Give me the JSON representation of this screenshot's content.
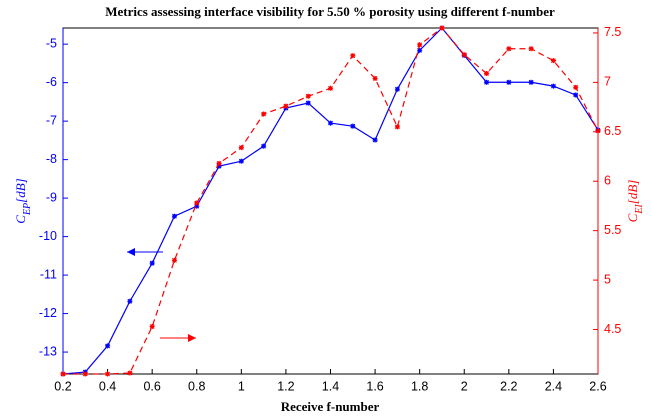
{
  "chart_data": {
    "type": "line",
    "title": "Metrics assessing interface visibility for 5.50 % porosity using different f-number",
    "xlabel": "Receive f-number",
    "ylabel": {
      "base": "C",
      "sub": "EP",
      "unit": "[dB]"
    },
    "y2label": {
      "base": "C",
      "sub": "EI",
      "unit": "[dB]"
    },
    "x": [
      0.2,
      0.3,
      0.4,
      0.5,
      0.6,
      0.7,
      0.8,
      0.9,
      1.0,
      1.1,
      1.2,
      1.3,
      1.4,
      1.5,
      1.6,
      1.7,
      1.8,
      1.9,
      2.0,
      2.1,
      2.2,
      2.3,
      2.4,
      2.5,
      2.6
    ],
    "series": [
      {
        "color": "#0000ff",
        "dash": "solid",
        "axis": "y",
        "values": [
          -13.57,
          -13.52,
          -12.84,
          -11.68,
          -10.69,
          -9.47,
          -9.21,
          -8.17,
          -8.04,
          -7.65,
          -6.66,
          -6.53,
          -7.05,
          -7.13,
          -7.49,
          -6.17,
          -5.16,
          -4.58,
          -5.29,
          -5.99,
          -5.99,
          -5.99,
          -6.09,
          -6.32,
          -7.23
        ]
      },
      {
        "color": "#ff0000",
        "dash": "dashed",
        "axis": "y2",
        "values": [
          4.05,
          4.05,
          4.05,
          4.06,
          4.53,
          5.2,
          5.78,
          6.18,
          6.34,
          6.68,
          6.76,
          6.86,
          6.94,
          7.27,
          7.04,
          6.55,
          7.38,
          7.55,
          7.28,
          7.09,
          7.34,
          7.34,
          7.22,
          6.95,
          6.51
        ]
      }
    ],
    "xlim": [
      0.2,
      2.6
    ],
    "xticks": [
      0.2,
      0.4,
      0.6,
      0.8,
      1,
      1.2,
      1.4,
      1.6,
      1.8,
      2,
      2.2,
      2.4,
      2.6
    ],
    "ylim": [
      -13.57,
      -4.58
    ],
    "yticks": [
      -13,
      -12,
      -11,
      -10,
      -9,
      -8,
      -7,
      -6,
      -5
    ],
    "y2lim": [
      4.05,
      7.55
    ],
    "y2ticks": [
      4.5,
      5,
      5.5,
      6,
      6.5,
      7,
      7.5
    ],
    "grid": false
  }
}
